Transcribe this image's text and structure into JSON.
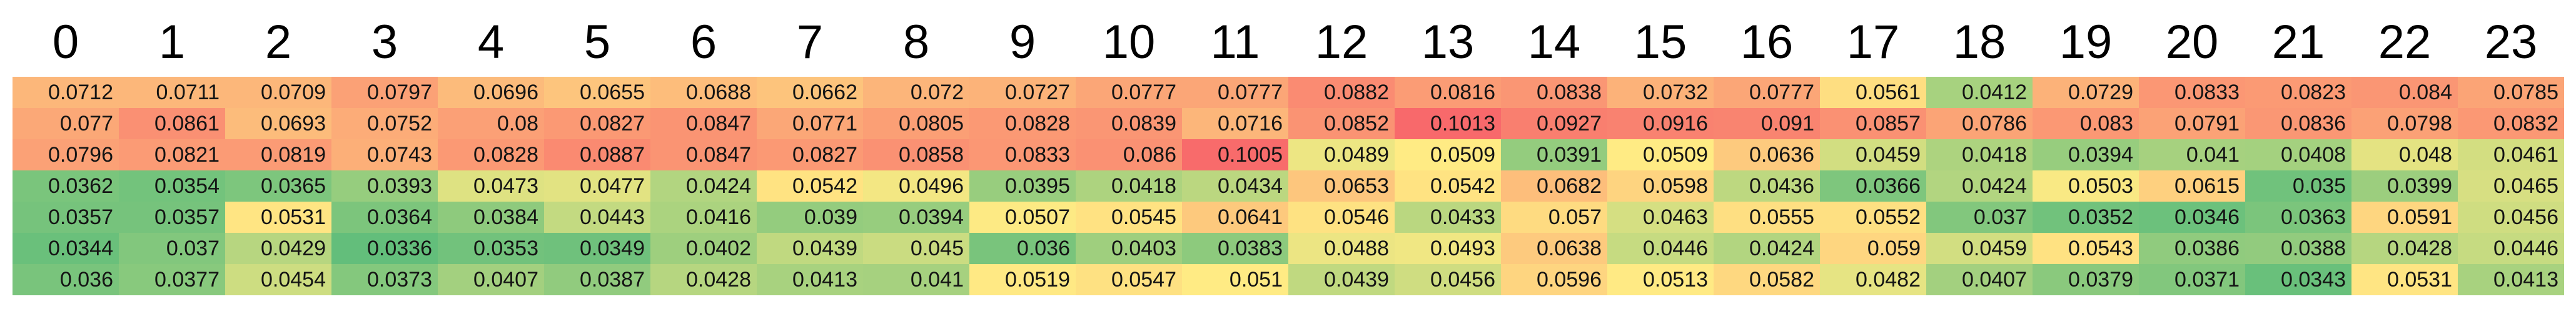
{
  "chart_data": {
    "type": "heatmap",
    "columns": [
      "0",
      "1",
      "2",
      "3",
      "4",
      "5",
      "6",
      "7",
      "8",
      "9",
      "10",
      "11",
      "12",
      "13",
      "14",
      "15",
      "16",
      "17",
      "18",
      "19",
      "20",
      "21",
      "22",
      "23"
    ],
    "rows": [
      [
        "0.0712",
        "0.0711",
        "0.0709",
        "0.0797",
        "0.0696",
        "0.0655",
        "0.0688",
        "0.0662",
        "0.072",
        "0.0727",
        "0.0777",
        "0.0777",
        "0.0882",
        "0.0816",
        "0.0838",
        "0.0732",
        "0.0777",
        "0.0561",
        "0.0412",
        "0.0729",
        "0.0833",
        "0.0823",
        "0.084",
        "0.0785"
      ],
      [
        "0.077",
        "0.0861",
        "0.0693",
        "0.0752",
        "0.08",
        "0.0827",
        "0.0847",
        "0.0771",
        "0.0805",
        "0.0828",
        "0.0839",
        "0.0716",
        "0.0852",
        "0.1013",
        "0.0927",
        "0.0916",
        "0.091",
        "0.0857",
        "0.0786",
        "0.083",
        "0.0791",
        "0.0836",
        "0.0798",
        "0.0832"
      ],
      [
        "0.0796",
        "0.0821",
        "0.0819",
        "0.0743",
        "0.0828",
        "0.0887",
        "0.0847",
        "0.0827",
        "0.0858",
        "0.0833",
        "0.086",
        "0.1005",
        "0.0489",
        "0.0509",
        "0.0391",
        "0.0509",
        "0.0636",
        "0.0459",
        "0.0418",
        "0.0394",
        "0.041",
        "0.0408",
        "0.048",
        "0.0461"
      ],
      [
        "0.0362",
        "0.0354",
        "0.0365",
        "0.0393",
        "0.0473",
        "0.0477",
        "0.0424",
        "0.0542",
        "0.0496",
        "0.0395",
        "0.0418",
        "0.0434",
        "0.0653",
        "0.0542",
        "0.0682",
        "0.0598",
        "0.0436",
        "0.0366",
        "0.0424",
        "0.0503",
        "0.0615",
        "0.035",
        "0.0399",
        "0.0465"
      ],
      [
        "0.0357",
        "0.0357",
        "0.0531",
        "0.0364",
        "0.0384",
        "0.0443",
        "0.0416",
        "0.039",
        "0.0394",
        "0.0507",
        "0.0545",
        "0.0641",
        "0.0546",
        "0.0433",
        "0.057",
        "0.0463",
        "0.0555",
        "0.0552",
        "0.037",
        "0.0352",
        "0.0346",
        "0.0363",
        "0.0591",
        "0.0456"
      ],
      [
        "0.0344",
        "0.037",
        "0.0429",
        "0.0336",
        "0.0353",
        "0.0349",
        "0.0402",
        "0.0439",
        "0.045",
        "0.036",
        "0.0403",
        "0.0383",
        "0.0488",
        "0.0493",
        "0.0638",
        "0.0446",
        "0.0424",
        "0.059",
        "0.0459",
        "0.0543",
        "0.0386",
        "0.0388",
        "0.0428",
        "0.0446"
      ],
      [
        "0.036",
        "0.0377",
        "0.0454",
        "0.0373",
        "0.0407",
        "0.0387",
        "0.0428",
        "0.0413",
        "0.041",
        "0.0519",
        "0.0547",
        "0.051",
        "0.0439",
        "0.0456",
        "0.0596",
        "0.0513",
        "0.0582",
        "0.0482",
        "0.0407",
        "0.0379",
        "0.0371",
        "0.0343",
        "0.0531",
        "0.0413"
      ]
    ],
    "colorscale": {
      "min_color": "#63BE7B",
      "mid_color": "#FFEB84",
      "max_color": "#F8696B",
      "mid_mode": "median"
    },
    "text_color": "#141414",
    "header_color": "#000000",
    "grid": false,
    "legend": "none"
  }
}
